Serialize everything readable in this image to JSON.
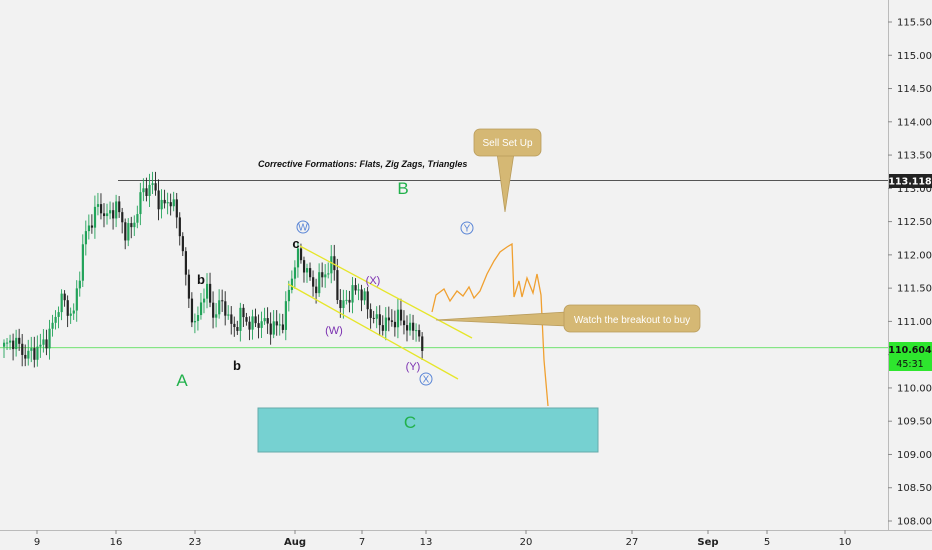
{
  "chart_data": {
    "type": "candlestick",
    "title": "",
    "y_axis": {
      "range": [
        107.8,
        116.0
      ],
      "ticks": [
        "115.500",
        "115.000",
        "114.500",
        "114.000",
        "113.500",
        "113.000",
        "112.500",
        "112.000",
        "111.500",
        "111.000",
        "110.500",
        "110.000",
        "109.500",
        "109.000",
        "108.500",
        "108.000"
      ]
    },
    "x_axis": {
      "ticks": [
        {
          "label": "9",
          "bold": false
        },
        {
          "label": "16",
          "bold": false
        },
        {
          "label": "23",
          "bold": false
        },
        {
          "label": "Aug",
          "bold": true
        },
        {
          "label": "7",
          "bold": false
        },
        {
          "label": "13",
          "bold": false
        },
        {
          "label": "20",
          "bold": false
        },
        {
          "label": "27",
          "bold": false
        },
        {
          "label": "Sep",
          "bold": true
        },
        {
          "label": "5",
          "bold": false
        },
        {
          "label": "10",
          "bold": false
        }
      ]
    },
    "price_anchors": [
      [
        0,
        110.62
      ],
      [
        10,
        110.72
      ],
      [
        22,
        110.48
      ],
      [
        36,
        110.6
      ],
      [
        46,
        110.8
      ],
      [
        58,
        111.35
      ],
      [
        70,
        111.05
      ],
      [
        82,
        112.3
      ],
      [
        96,
        112.75
      ],
      [
        104,
        112.55
      ],
      [
        114,
        112.75
      ],
      [
        122,
        112.35
      ],
      [
        130,
        112.4
      ],
      [
        140,
        112.95
      ],
      [
        150,
        113.05
      ],
      [
        160,
        112.72
      ],
      [
        170,
        112.85
      ],
      [
        180,
        112.25
      ],
      [
        186,
        111.4
      ],
      [
        194,
        110.9
      ],
      [
        204,
        111.55
      ],
      [
        212,
        111.1
      ],
      [
        222,
        111.3
      ],
      [
        232,
        110.85
      ],
      [
        240,
        111.1
      ],
      [
        250,
        110.95
      ],
      [
        262,
        111.0
      ],
      [
        274,
        110.9
      ],
      [
        284,
        111.0
      ],
      [
        290,
        111.6
      ],
      [
        298,
        112.0
      ],
      [
        304,
        111.85
      ],
      [
        314,
        111.5
      ],
      [
        324,
        111.7
      ],
      [
        334,
        111.9
      ],
      [
        340,
        111.15
      ],
      [
        350,
        111.4
      ],
      [
        360,
        111.5
      ],
      [
        372,
        111.1
      ],
      [
        382,
        110.95
      ],
      [
        392,
        111.0
      ],
      [
        402,
        111.05
      ],
      [
        412,
        110.85
      ],
      [
        418,
        110.95
      ],
      [
        424,
        110.5
      ]
    ],
    "horizontal_levels": [
      {
        "value": 113.118,
        "label": "113.118",
        "color": "#555555"
      },
      {
        "value": 110.604,
        "label": "110.604",
        "color": "#44dd44"
      }
    ],
    "last_price_label": "110.604",
    "countdown_label": "45:31",
    "headline": "Corrective Formations: Flats, Zig Zags, Triangles",
    "wave_labels": {
      "A": "A",
      "B": "B",
      "C": "C",
      "b": "b",
      "c": "c",
      "W_circle": "W",
      "Y_circle": "Y",
      "X_circle": "X",
      "W_paren": "(W)",
      "X_paren": "(X)",
      "Y_paren": "(Y)"
    },
    "callouts": {
      "sell": "Sell Set Up",
      "watch": "Watch the breakout to buy"
    },
    "colors": {
      "up_candle": "#22a35a",
      "down_candle": "#222222",
      "channel": "#e6e62a",
      "projection": "#f0a030",
      "target_box": "#76d1d1",
      "callout_fill": "#d5b874"
    }
  }
}
